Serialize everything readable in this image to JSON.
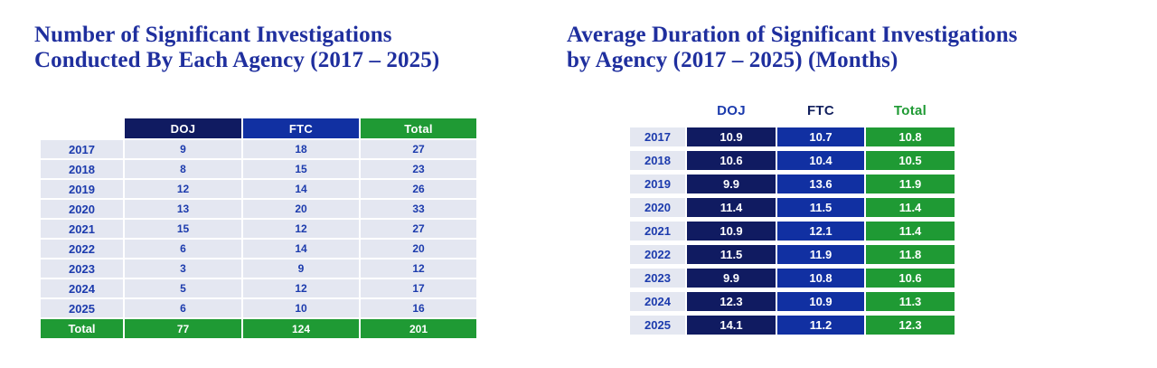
{
  "colors": {
    "navy": "#101b61",
    "blue": "#1130a2",
    "green": "#1f9a34",
    "row_bg": "#e4e7f1",
    "text_blue": "#1c3bad",
    "title_blue": "#1f2f9e",
    "header_ftc_navy": "#12205e"
  },
  "chart_data": [
    {
      "type": "table",
      "title": "Number of Significant Investigations Conducted By Each Agency (2017 – 2025)",
      "title_lines": [
        "Number of Significant Investigations",
        "Conducted By Each Agency (2017 – 2025)"
      ],
      "columns": [
        "DOJ",
        "FTC",
        "Total"
      ],
      "rows": [
        [
          "2017",
          "9",
          "18",
          "27"
        ],
        [
          "2018",
          "8",
          "15",
          "23"
        ],
        [
          "2019",
          "12",
          "14",
          "26"
        ],
        [
          "2020",
          "13",
          "20",
          "33"
        ],
        [
          "2021",
          "15",
          "12",
          "27"
        ],
        [
          "2022",
          "6",
          "14",
          "20"
        ],
        [
          "2023",
          "3",
          "9",
          "12"
        ],
        [
          "2024",
          "5",
          "12",
          "17"
        ],
        [
          "2025",
          "6",
          "10",
          "16"
        ]
      ],
      "total_row": [
        "Total",
        "77",
        "124",
        "201"
      ]
    },
    {
      "type": "table",
      "title": "Average Duration of Significant Investigations by Agency (2017 – 2025) (Months)",
      "title_lines": [
        "Average Duration of Significant Investigations",
        "by Agency (2017 – 2025) (Months)"
      ],
      "columns": [
        "DOJ",
        "FTC",
        "Total"
      ],
      "rows": [
        [
          "2017",
          "10.9",
          "10.7",
          "10.8"
        ],
        [
          "2018",
          "10.6",
          "10.4",
          "10.5"
        ],
        [
          "2019",
          "9.9",
          "13.6",
          "11.9"
        ],
        [
          "2020",
          "11.4",
          "11.5",
          "11.4"
        ],
        [
          "2021",
          "10.9",
          "12.1",
          "11.4"
        ],
        [
          "2022",
          "11.5",
          "11.9",
          "11.8"
        ],
        [
          "2023",
          "9.9",
          "10.8",
          "10.6"
        ],
        [
          "2024",
          "12.3",
          "10.9",
          "11.3"
        ],
        [
          "2025",
          "14.1",
          "11.2",
          "12.3"
        ]
      ]
    }
  ]
}
